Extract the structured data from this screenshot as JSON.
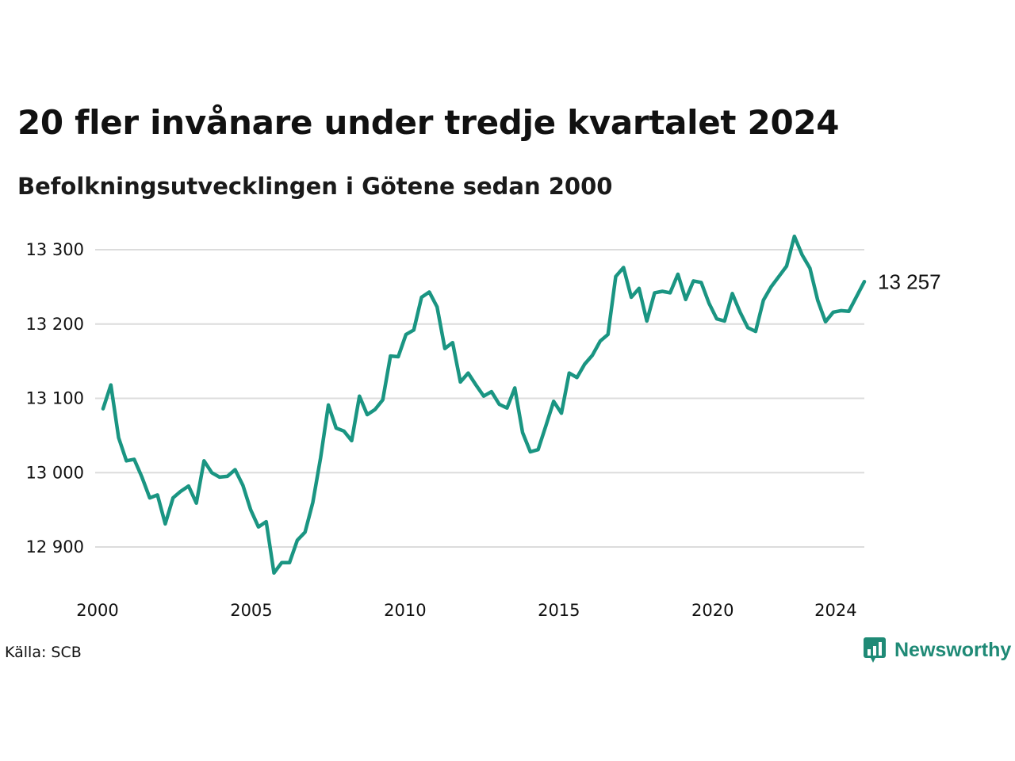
{
  "title": "20 fler invånare under tredje kvartalet 2024",
  "subtitle": "Befolkningsutvecklingen i Götene sedan 2000",
  "source": "Källa: SCB",
  "brand": {
    "name": "Newsworthy",
    "color": "#1f8a76",
    "icon": "bar-chart-logo-icon"
  },
  "colors": {
    "line": "#1a9582",
    "grid": "#dcdcdc"
  },
  "chart_data": {
    "type": "line",
    "title": "20 fler invånare under tredje kvartalet 2024",
    "subtitle": "Befolkningsutvecklingen i Götene sedan 2000",
    "xlabel": "",
    "ylabel": "",
    "x_start": "2000 Q1",
    "x_step": "quarter",
    "xlim": [
      2000.0,
      2024.75
    ],
    "ylim": [
      12860,
      13320
    ],
    "grid": true,
    "legend": "none",
    "yticks": [
      12900,
      13000,
      13100,
      13200,
      13300
    ],
    "ytick_labels": [
      "12 900",
      "13 000",
      "13 100",
      "13 200",
      "13 300"
    ],
    "xticks": [
      2000,
      2005,
      2010,
      2015,
      2020,
      2024
    ],
    "xtick_labels": [
      "2000",
      "2005",
      "2010",
      "2015",
      "2020",
      "2024"
    ],
    "end_label": "13 257",
    "series": [
      {
        "values": [
          13086,
          13118,
          13047,
          13016,
          13018,
          12994,
          12966,
          12970,
          12931,
          12966,
          12975,
          12982,
          12959,
          13016,
          13000,
          12994,
          12995,
          13004,
          12983,
          12950,
          12927,
          12934,
          12865,
          12879,
          12879,
          12909,
          12920,
          12960,
          13020,
          13091,
          13060,
          13056,
          13043,
          13103,
          13078,
          13085,
          13098,
          13157,
          13156,
          13186,
          13192,
          13236,
          13243,
          13223,
          13167,
          13175,
          13122,
          13134,
          13118,
          13103,
          13109,
          13092,
          13087,
          13114,
          13054,
          13028,
          13031,
          13063,
          13096,
          13080,
          13134,
          13128,
          13146,
          13158,
          13177,
          13186,
          13264,
          13276,
          13236,
          13248,
          13204,
          13242,
          13244,
          13242,
          13267,
          13233,
          13258,
          13256,
          13228,
          13207,
          13204,
          13241,
          13216,
          13195,
          13190,
          13232,
          13250,
          13264,
          13278,
          13318,
          13293,
          13275,
          13232,
          13203,
          13216,
          13218,
          13217,
          13237,
          13257
        ]
      }
    ]
  }
}
